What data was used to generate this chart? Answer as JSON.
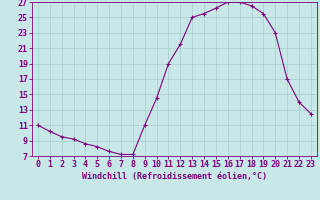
{
  "x": [
    0,
    1,
    2,
    3,
    4,
    5,
    6,
    7,
    8,
    9,
    10,
    11,
    12,
    13,
    14,
    15,
    16,
    17,
    18,
    19,
    20,
    21,
    22,
    23
  ],
  "y": [
    11,
    10.2,
    9.5,
    9.2,
    8.6,
    8.2,
    7.6,
    7.2,
    7.2,
    11,
    14.5,
    19,
    21.5,
    25,
    25.5,
    26.2,
    27,
    27,
    26.5,
    25.5,
    23,
    17,
    14,
    12.5
  ],
  "line_color": "#800080",
  "marker": "+",
  "bg_color": "#c8e8e8",
  "grid_color": "#a8cccc",
  "xlabel": "Windchill (Refroidissement éolien,°C)",
  "xlim": [
    -0.5,
    23.5
  ],
  "ylim": [
    7,
    27
  ],
  "yticks": [
    7,
    9,
    11,
    13,
    15,
    17,
    19,
    21,
    23,
    25,
    27
  ],
  "xticks": [
    0,
    1,
    2,
    3,
    4,
    5,
    6,
    7,
    8,
    9,
    10,
    11,
    12,
    13,
    14,
    15,
    16,
    17,
    18,
    19,
    20,
    21,
    22,
    23
  ],
  "xlabel_fontsize": 6.0,
  "tick_fontsize": 6.0,
  "line_width": 0.8,
  "marker_size": 2.5
}
